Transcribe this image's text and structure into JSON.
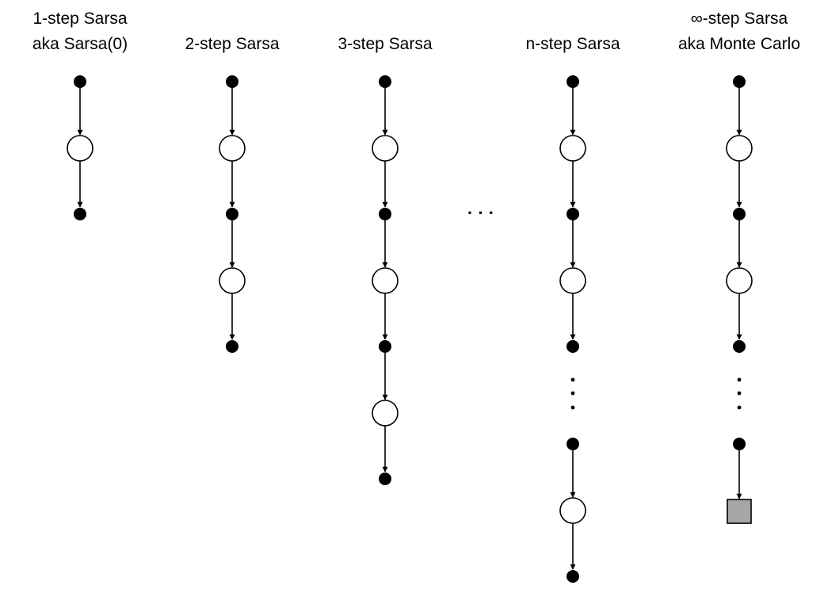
{
  "columns": [
    {
      "id": "sarsa-1",
      "title_lines": [
        "1-step Sarsa",
        "aka Sarsa(0)"
      ],
      "sequence": [
        "state",
        "action",
        "state"
      ]
    },
    {
      "id": "sarsa-2",
      "title_lines": [
        "2-step Sarsa"
      ],
      "sequence": [
        "state",
        "action",
        "state",
        "action",
        "state"
      ]
    },
    {
      "id": "sarsa-3",
      "title_lines": [
        "3-step Sarsa"
      ],
      "sequence": [
        "state",
        "action",
        "state",
        "action",
        "state",
        "action",
        "state"
      ]
    },
    {
      "id": "sarsa-n",
      "title_lines": [
        "n-step Sarsa"
      ],
      "sequence": [
        "state",
        "action",
        "state",
        "action",
        "state",
        "vdots",
        "state",
        "action",
        "state"
      ]
    },
    {
      "id": "sarsa-inf",
      "title_lines": [
        "∞-step Sarsa",
        "aka Monte Carlo"
      ],
      "sequence": [
        "state",
        "action",
        "state",
        "action",
        "state",
        "vdots",
        "state",
        "terminal"
      ]
    }
  ],
  "between_columns_ellipsis": "· · ·",
  "colors": {
    "node_fill": "#000000",
    "action_fill": "#ffffff",
    "terminal_fill": "#a6a6a6",
    "stroke": "#000000"
  }
}
